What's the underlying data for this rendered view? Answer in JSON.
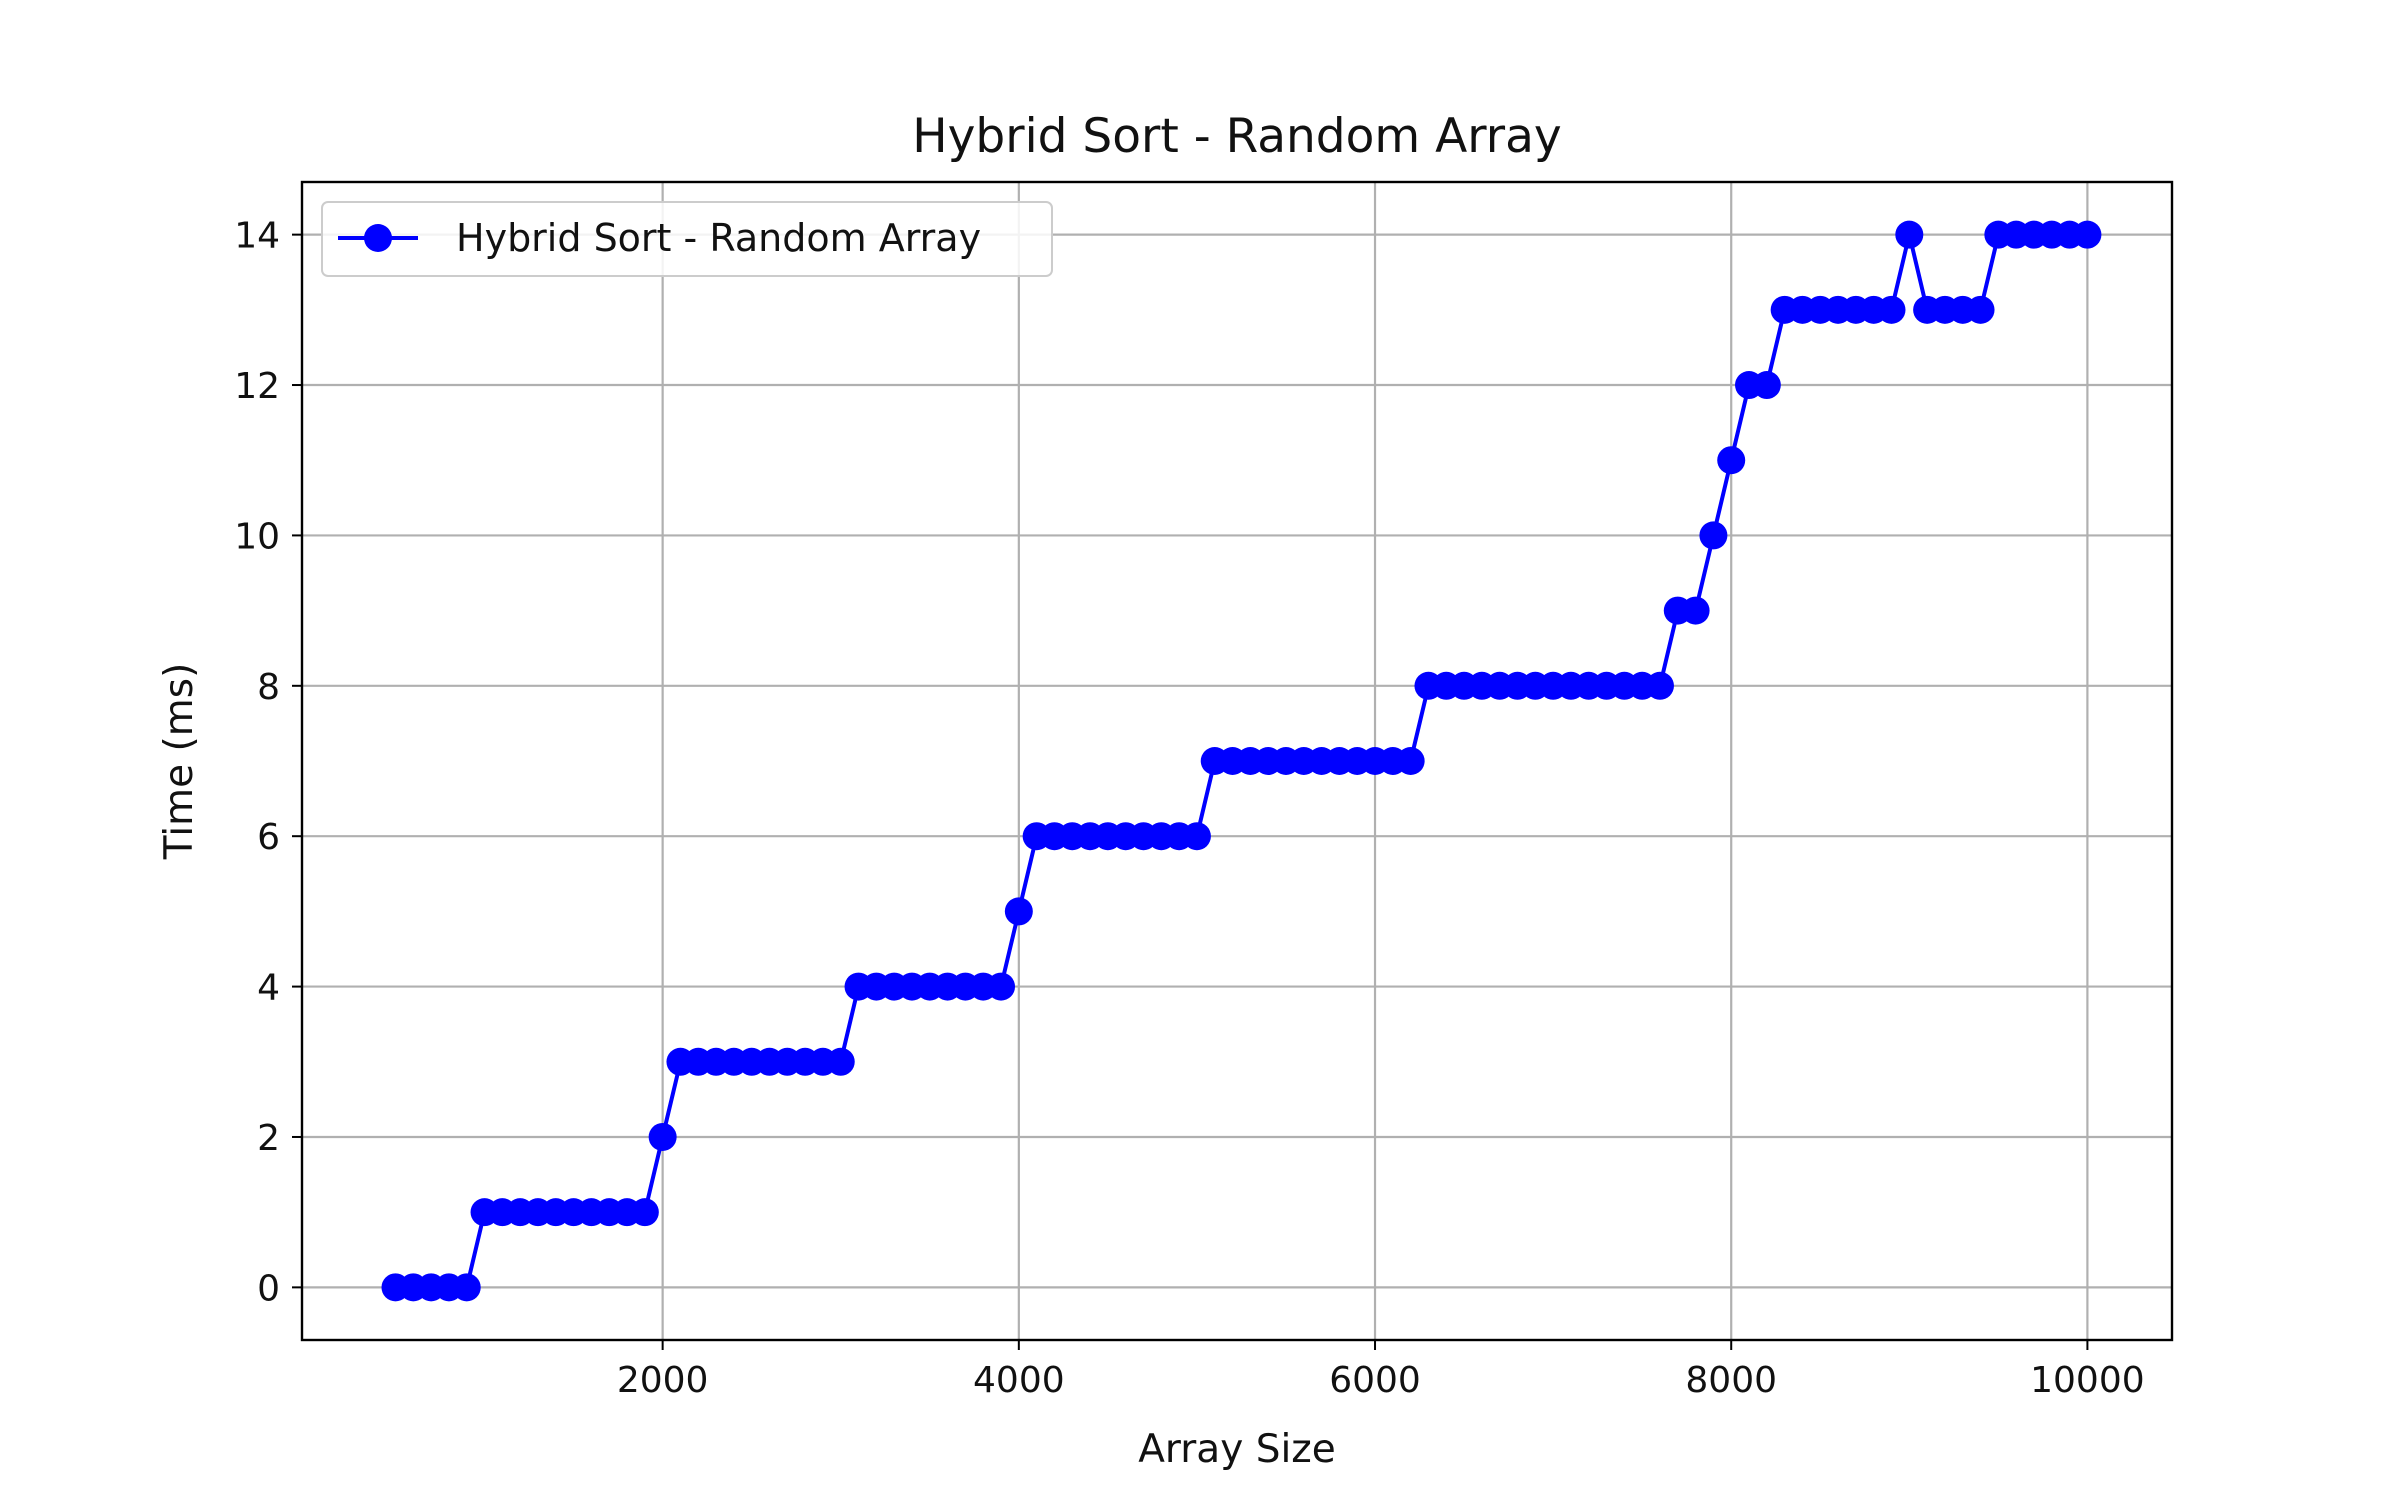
{
  "chart_data": {
    "type": "line",
    "title": "Hybrid Sort - Random Array",
    "xlabel": "Array Size",
    "ylabel": "Time (ms)",
    "xlim": [
      -25,
      10475
    ],
    "ylim": [
      -0.7,
      14.7
    ],
    "xticks": [
      2000,
      4000,
      6000,
      8000,
      10000
    ],
    "xtick_labels": [
      "2000",
      "4000",
      "6000",
      "8000",
      "10000"
    ],
    "yticks": [
      0,
      2,
      4,
      6,
      8,
      10,
      12,
      14
    ],
    "ytick_labels": [
      "0",
      "2",
      "4",
      "6",
      "8",
      "10",
      "12",
      "14"
    ],
    "grid": true,
    "legend_position": "top-left",
    "series": [
      {
        "name": "Hybrid Sort - Random Array",
        "color": "#0000ff",
        "marker": "circle",
        "x": [
          500,
          600,
          700,
          800,
          900,
          1000,
          1100,
          1200,
          1300,
          1400,
          1500,
          1600,
          1700,
          1800,
          1900,
          2000,
          2100,
          2200,
          2300,
          2400,
          2500,
          2600,
          2700,
          2800,
          2900,
          3000,
          3100,
          3200,
          3300,
          3400,
          3500,
          3600,
          3700,
          3800,
          3900,
          4000,
          4100,
          4200,
          4300,
          4400,
          4500,
          4600,
          4700,
          4800,
          4900,
          5000,
          5100,
          5200,
          5300,
          5400,
          5500,
          5600,
          5700,
          5800,
          5900,
          6000,
          6100,
          6200,
          6300,
          6400,
          6500,
          6600,
          6700,
          6800,
          6900,
          7000,
          7100,
          7200,
          7300,
          7400,
          7500,
          7600,
          7700,
          7800,
          7900,
          8000,
          8100,
          8200,
          8300,
          8400,
          8500,
          8600,
          8700,
          8800,
          8900,
          9000,
          9100,
          9200,
          9300,
          9400,
          9500,
          9600,
          9700,
          9800,
          9900,
          10000
        ],
        "values": [
          0,
          0,
          0,
          0,
          0,
          1,
          1,
          1,
          1,
          1,
          1,
          1,
          1,
          1,
          1,
          2,
          3,
          3,
          3,
          3,
          3,
          3,
          3,
          3,
          3,
          3,
          4,
          4,
          4,
          4,
          4,
          4,
          4,
          4,
          4,
          5,
          6,
          6,
          6,
          6,
          6,
          6,
          6,
          6,
          6,
          6,
          7,
          7,
          7,
          7,
          7,
          7,
          7,
          7,
          7,
          7,
          7,
          7,
          8,
          8,
          8,
          8,
          8,
          8,
          8,
          8,
          8,
          8,
          8,
          8,
          8,
          8,
          9,
          9,
          10,
          11,
          12,
          12,
          13,
          13,
          13,
          13,
          13,
          13,
          13,
          14,
          13,
          13,
          13,
          13,
          14,
          14,
          14,
          14,
          14,
          14
        ]
      }
    ]
  }
}
